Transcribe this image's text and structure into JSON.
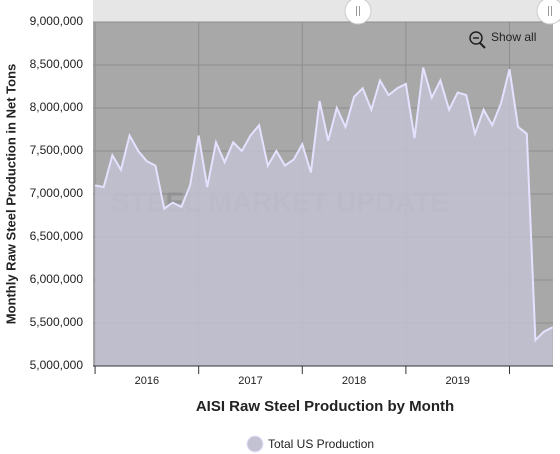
{
  "chart_data": {
    "type": "area",
    "ylabel": "Monthly Raw Steel Production in Net Tons",
    "xlabel": "AISI Raw Steel Production by Month",
    "watermark": "STEEL MARKET UPDATE",
    "button": "Show all",
    "x": [
      2016.0,
      2016.083,
      2016.167,
      2016.25,
      2016.333,
      2016.417,
      2016.5,
      2016.583,
      2016.667,
      2016.75,
      2016.833,
      2016.917,
      2017.0,
      2017.083,
      2017.167,
      2017.25,
      2017.333,
      2017.417,
      2017.5,
      2017.583,
      2017.667,
      2017.75,
      2017.833,
      2017.917,
      2018.0,
      2018.083,
      2018.167,
      2018.25,
      2018.333,
      2018.417,
      2018.5,
      2018.583,
      2018.667,
      2018.75,
      2018.833,
      2018.917,
      2019.0,
      2019.083,
      2019.167,
      2019.25,
      2019.333,
      2019.417,
      2019.5,
      2019.583,
      2019.667,
      2019.75,
      2019.833,
      2019.917,
      2020.0,
      2020.083,
      2020.167,
      2020.25,
      2020.333,
      2020.417
    ],
    "series": [
      {
        "name": "Total US Production",
        "color": "#e4e2ff",
        "fill": "#c3c2d2",
        "values": [
          7100000,
          7080000,
          7450000,
          7280000,
          7680000,
          7500000,
          7380000,
          7330000,
          6830000,
          6900000,
          6850000,
          7100000,
          7680000,
          7080000,
          7600000,
          7370000,
          7600000,
          7500000,
          7680000,
          7800000,
          7330000,
          7500000,
          7330000,
          7400000,
          7580000,
          7250000,
          8080000,
          7620000,
          8000000,
          7780000,
          8130000,
          8230000,
          7980000,
          8320000,
          8150000,
          8230000,
          8280000,
          7650000,
          8470000,
          8120000,
          8320000,
          7980000,
          8180000,
          8150000,
          7700000,
          7980000,
          7800000,
          8050000,
          8450000,
          7780000,
          7700000,
          5300000,
          5400000,
          5450000
        ]
      }
    ],
    "xlim": [
      2015.98,
      2020.42
    ],
    "xticks": [
      {
        "value": 2016.5,
        "label": "2016"
      },
      {
        "value": 2017.5,
        "label": "2017"
      },
      {
        "value": 2018.5,
        "label": "2018"
      },
      {
        "value": 2019.5,
        "label": "2019"
      }
    ],
    "xgrid": [
      2016,
      2017,
      2018,
      2019,
      2020
    ],
    "ylim": [
      5000000,
      9000000
    ],
    "yticks": [
      {
        "value": 5000000,
        "label": "5,000,000"
      },
      {
        "value": 5500000,
        "label": "5,500,000"
      },
      {
        "value": 6000000,
        "label": "6,000,000"
      },
      {
        "value": 6500000,
        "label": "6,500,000"
      },
      {
        "value": 7000000,
        "label": "7,000,000"
      },
      {
        "value": 7500000,
        "label": "7,500,000"
      },
      {
        "value": 8000000,
        "label": "8,000,000"
      },
      {
        "value": 8500000,
        "label": "8,500,000"
      },
      {
        "value": 9000000,
        "label": "9,000,000"
      }
    ],
    "grid": true,
    "background": "#a8a8a8"
  }
}
